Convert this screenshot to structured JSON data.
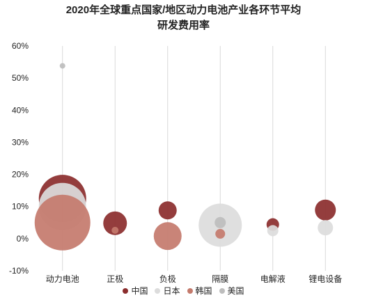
{
  "chart_data": {
    "type": "bubble",
    "title_lines": [
      "2020年全球重点国家/地区动力电池产业各环节平均",
      "研发费用率"
    ],
    "categories": [
      "动力电池",
      "正极",
      "负极",
      "隔膜",
      "电解液",
      "锂电设备"
    ],
    "y_ticks": [
      "-10%",
      "0%",
      "10%",
      "20%",
      "30%",
      "40%",
      "50%",
      "60%"
    ],
    "ylim": [
      -10,
      60
    ],
    "grid": "vertical",
    "legend_position": "bottom",
    "series": [
      {
        "name": "中国",
        "color": "#8b2d2d",
        "points": [
          {
            "category": "动力电池",
            "y": 12.5,
            "size": 34
          },
          {
            "category": "正极",
            "y": 4.8,
            "size": 17
          },
          {
            "category": "负极",
            "y": 8.8,
            "size": 13
          },
          {
            "category": "电解液",
            "y": 4.4,
            "size": 9
          },
          {
            "category": "锂电设备",
            "y": 8.9,
            "size": 15
          }
        ]
      },
      {
        "name": "日本",
        "color": "#dcdcdc",
        "points": [
          {
            "category": "动力电池",
            "y": 10.0,
            "size": 34
          },
          {
            "category": "隔膜",
            "y": 4.2,
            "size": 31
          },
          {
            "category": "电解液",
            "y": 2.5,
            "size": 8
          },
          {
            "category": "锂电设备",
            "y": 3.4,
            "size": 11
          }
        ]
      },
      {
        "name": "韩国",
        "color": "#c47a6c",
        "points": [
          {
            "category": "动力电池",
            "y": 5.0,
            "size": 40
          },
          {
            "category": "正极",
            "y": 2.6,
            "size": 5
          },
          {
            "category": "负极",
            "y": 0.8,
            "size": 20
          },
          {
            "category": "隔膜",
            "y": 1.5,
            "size": 7
          }
        ]
      },
      {
        "name": "美国",
        "color": "#bdbdbd",
        "points": [
          {
            "category": "动力电池",
            "y": 53.8,
            "size": 4
          },
          {
            "category": "隔膜",
            "y": 5.0,
            "size": 8
          }
        ]
      }
    ]
  }
}
